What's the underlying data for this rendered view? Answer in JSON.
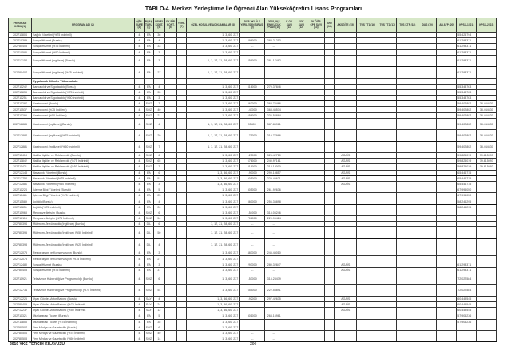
{
  "title": "TABLO-4. Merkezi Yerleştirme İle Öğrenci Alan Yükseköğretim Lisans Programları",
  "headers": [
    "PROGRAM KODU (1)",
    "PROGRAM ADI (2)",
    "ÖĞR. SÜRE (3)",
    "PUAN TÜRÜ (4)",
    "GENEL KONT. (5)",
    "OK.BİR. KONT. (6)",
    "YERL. (7)",
    "ÖZEL KOŞUL VE AÇIKLAMALAR (8)",
    "2018-YKS İLE YERLEŞEN SIRASI (9)",
    "2018-YKS EN KÜÇÜK PUAN (10)",
    "K.OK SAYI (11)",
    "SOK SAYI (12)",
    "EK ÖĞR. ÇPE SAYI (13)",
    "SRV (14)",
    "AKSGİTE (15)",
    "TUS TT1 (16)",
    "TUS TT2 (17)",
    "TUS KTP (18)",
    "DUS (19)",
    "AB AYP (20)",
    "KPSS-1 (21)",
    "KPSS-2 (22)"
  ],
  "rows": [
    {
      "cells": [
        "202711804",
        "Sağlık Yönetimi (%75 İndirimli)",
        "4",
        "EA",
        "36",
        "",
        "",
        "1, 3, 60, 237",
        "",
        "",
        "",
        "",
        "",
        "",
        "",
        "",
        "",
        "",
        "",
        "",
        "55.425794",
        ""
      ]
    },
    {
      "cells": [
        "202710389",
        "Sosyal Hizmet (Burslu)",
        "4",
        "EA",
        "4",
        "",
        "",
        "1, 3, 60, 237",
        "296000",
        "284.21213",
        "",
        "",
        "",
        "",
        "",
        "",
        "",
        "",
        "",
        "",
        "61.298371",
        ""
      ]
    },
    {
      "cells": [
        "202780405",
        "Sosyal Hizmet (%75 İndirimli)",
        "4",
        "EA",
        "33",
        "",
        "",
        "1, 3, 60, 237",
        "---",
        "---",
        "",
        "",
        "",
        "",
        "",
        "",
        "",
        "",
        "",
        "",
        "61.298371",
        ""
      ]
    },
    {
      "cells": [
        "202710586",
        "Sosyal Hizmet (%50 İndirimli)",
        "4",
        "EA",
        "3",
        "",
        "",
        "1, 3, 60, 237",
        "",
        "",
        "",
        "",
        "",
        "",
        "",
        "",
        "",
        "",
        "",
        "",
        "61.298371",
        ""
      ]
    },
    {
      "cells": [
        "202712152",
        "Sosyal Hizmet (İngilizce) (Burslu)",
        "4",
        "EA",
        "3",
        "",
        "",
        "1, 3, 17, 21, 28, 60, 237",
        "259000",
        "281.17482",
        "",
        "",
        "",
        "",
        "",
        "",
        "",
        "",
        "",
        "",
        "61.298371",
        ""
      ]
    },
    {
      "cells": [
        "202780407",
        "Sosyal Hizmet (İngilizce) (%75 İndirimli)",
        "4",
        "EA",
        "27",
        "",
        "",
        "1, 3, 17, 21, 28, 60, 237",
        "---",
        "---",
        "",
        "",
        "",
        "",
        "",
        "",
        "",
        "",
        "",
        "",
        "61.298371",
        ""
      ]
    },
    {
      "section": true,
      "cells": [
        "",
        "Uygulamalı Bilimler Yüksekokulu",
        "",
        "",
        "",
        "",
        "",
        "",
        "",
        "",
        "",
        "",
        "",
        "",
        "",
        "",
        "",
        "",
        "",
        "",
        "",
        ""
      ]
    },
    {
      "cells": [
        "202711242",
        "Bankacılık ve Sigortacılık (Burslu)",
        "4",
        "EA",
        "4",
        "",
        "",
        "1, 3, 60, 237",
        "316000",
        "270.37846",
        "",
        "",
        "",
        "",
        "",
        "",
        "",
        "",
        "",
        "",
        "55.343763",
        ""
      ]
    },
    {
      "cells": [
        "202711833",
        "Bankacılık ve Sigortacılık (%75 İndirimli)",
        "4",
        "EA",
        "33",
        "",
        "",
        "1, 3, 60, 237",
        "",
        "",
        "",
        "",
        "",
        "",
        "",
        "",
        "",
        "",
        "",
        "",
        "55.343763",
        ""
      ]
    },
    {
      "cells": [
        "202711251",
        "Bankacılık ve Sigortacılık (%50 İndirimli)",
        "4",
        "EA",
        "3",
        "",
        "",
        "1, 3, 60, 237",
        "",
        "",
        "",
        "",
        "",
        "",
        "",
        "",
        "",
        "",
        "",
        "",
        "55.343763",
        ""
      ]
    },
    {
      "cells": [
        "202711287",
        "Gastronomi (Burslu)",
        "4",
        "SÖZ",
        "7",
        "",
        "",
        "1, 3, 60, 237",
        "363000",
        "364.73466",
        "",
        "",
        "",
        "",
        "",
        "",
        "",
        "",
        "",
        "",
        "59.402802",
        "78.444630"
      ]
    },
    {
      "cells": [
        "202711537",
        "Gastronomi (%75 İndirimli)",
        "4",
        "SÖZ",
        "40",
        "",
        "",
        "1, 3, 60, 237",
        "147000",
        "368.45574",
        "",
        "",
        "",
        "",
        "",
        "",
        "",
        "",
        "",
        "",
        "59.402802",
        "78.444630"
      ]
    },
    {
      "cells": [
        "202711290",
        "Gastronomi (%50 İndirimli)",
        "4",
        "SÖZ",
        "21",
        "",
        "",
        "1, 3, 60, 237",
        "656000",
        "236.52884",
        "",
        "",
        "",
        "",
        "",
        "",
        "",
        "",
        "",
        "",
        "59.402802",
        "78.444630"
      ]
    },
    {
      "cells": [
        "202712885",
        "Gastronomi (İngilizce) (Burslu)",
        "4",
        "SÖZ",
        "4",
        "",
        "",
        "1, 3, 17, 21, 28, 60, 237",
        "95400",
        "387.85961",
        "",
        "",
        "",
        "",
        "",
        "",
        "",
        "",
        "",
        "",
        "59.402802",
        "78.444630"
      ]
    },
    {
      "cells": [
        "202712884",
        "Gastronomi (İngilizce) (%75 İndirimli)",
        "4",
        "SÖZ",
        "29",
        "",
        "",
        "1, 3, 17, 21, 28, 60, 237",
        "171000",
        "310.77986",
        "",
        "",
        "",
        "",
        "",
        "",
        "",
        "",
        "",
        "",
        "59.402802",
        "78.444630"
      ]
    },
    {
      "cells": [
        "202712881",
        "Gastronomi (İngilizce) (%50 İndirimli)",
        "4",
        "SÖZ",
        "7",
        "",
        "",
        "1, 3, 17, 21, 28, 60, 237",
        "",
        "",
        "",
        "",
        "",
        "",
        "",
        "",
        "",
        "",
        "",
        "",
        "59.402802",
        "78.444630"
      ]
    },
    {
      "cells": [
        "202711418",
        "Halkla İlişkiler ve Reklamcılık (Burslu)",
        "4",
        "SÖZ",
        "6",
        "",
        "",
        "1, 3, 60, 237",
        "125000",
        "325.42710",
        "",
        "",
        "",
        "",
        "AGAİS",
        "",
        "",
        "",
        "",
        "",
        "59.825019",
        "79.815093"
      ]
    },
    {
      "cells": [
        "202711842",
        "Halkla İlişkiler ve Reklamcılık (%75 İndirimli)",
        "4",
        "SÖZ",
        "65",
        "",
        "",
        "1, 3, 60, 237",
        "676000",
        "240.97161",
        "",
        "",
        "",
        "",
        "AGAİS",
        "",
        "",
        "",
        "",
        "",
        "59.825019",
        "79.815093"
      ]
    },
    {
      "cells": [
        "202711421",
        "Halkla İlişkiler ve Reklamcılık (%50 İndirimli)",
        "4",
        "SÖZ",
        "7",
        "",
        "",
        "1, 3, 60, 237",
        "819000",
        "214.13000",
        "",
        "",
        "",
        "",
        "AGAİS",
        "",
        "",
        "",
        "",
        "",
        "59.825019",
        "79.815093"
      ]
    },
    {
      "cells": [
        "202712143",
        "Havacılık Yönetimi (Burslu)",
        "4",
        "EA",
        "6",
        "",
        "",
        "1, 3, 46, 60, 237",
        "190000",
        "299.19857",
        "",
        "",
        "",
        "",
        "AGAİS",
        "",
        "",
        "",
        "",
        "",
        "65.446715",
        ""
      ]
    },
    {
      "cells": [
        "202712752",
        "Havacılık Yönetimi (%75 İndirimli)",
        "4",
        "EA",
        "51",
        "",
        "",
        "1, 3, 46, 60, 237",
        "505000",
        "229.45621",
        "",
        "",
        "",
        "",
        "AGAİS",
        "",
        "",
        "",
        "",
        "",
        "65.446715",
        ""
      ]
    },
    {
      "cells": [
        "202712581",
        "Havacılık Yönetimi (%50 İndirimli)",
        "4",
        "EA",
        "3",
        "",
        "",
        "1, 3, 46, 60, 237",
        "",
        "",
        "",
        "",
        "",
        "",
        "AGAİS",
        "",
        "",
        "",
        "",
        "",
        "65.446715",
        ""
      ]
    },
    {
      "cells": [
        "202711224",
        "İşletme Bilgi Yönetimi (Burslu)",
        "4",
        "EA",
        "5",
        "",
        "",
        "1, 3, 60, 237",
        "305000",
        "261.92636",
        "",
        "",
        "",
        "",
        "",
        "",
        "",
        "",
        "",
        "",
        "67.995050",
        ""
      ]
    },
    {
      "cells": [
        "202711481",
        "İşletme Bilgi Yönetimi (%75 İndirimli)",
        "4",
        "EA",
        "25",
        "",
        "",
        "1, 3, 60, 237",
        "",
        "",
        "",
        "",
        "",
        "",
        "",
        "",
        "",
        "",
        "",
        "",
        "67.995050",
        ""
      ]
    },
    {
      "cells": [
        "202711589",
        "Lojistik (Burslu)",
        "4",
        "EA",
        "4",
        "",
        "",
        "1, 3, 60, 237",
        "360000",
        "256.35898",
        "",
        "",
        "",
        "",
        "",
        "",
        "",
        "",
        "",
        "",
        "58.246295",
        ""
      ]
    },
    {
      "cells": [
        "202711851",
        "Lojistik (%75 İndirimli)",
        "4",
        "EA",
        "26",
        "",
        "",
        "1, 3, 60, 237",
        "",
        "",
        "",
        "",
        "",
        "",
        "",
        "",
        "",
        "",
        "",
        "",
        "58.246295",
        ""
      ]
    },
    {
      "cells": [
        "202711968",
        "Medya ve İletişim (Burslu)",
        "4",
        "SÖZ",
        "6",
        "",
        "",
        "1, 3, 60, 237",
        "154000",
        "315.05246",
        "",
        "",
        "",
        "",
        "",
        "",
        "",
        "",
        "",
        "",
        "",
        ""
      ]
    },
    {
      "cells": [
        "202712116",
        "Medya ve İletişim (%75 İndirimli)",
        "4",
        "SÖZ",
        "54",
        "",
        "",
        "1, 3, 60, 237",
        "706000",
        "229.99424",
        "",
        "",
        "",
        "",
        "",
        "",
        "",
        "",
        "",
        "",
        "",
        ""
      ]
    },
    {
      "cells": [
        "202780394",
        "Mütercim-Tercümanlık (İngilizce) (Burslu)",
        "4",
        "DİL",
        "6",
        "",
        "",
        "3, 17, 21, 28, 60, 237",
        "---",
        "---",
        "",
        "",
        "",
        "",
        "",
        "",
        "",
        "",
        "",
        "",
        "",
        ""
      ]
    },
    {
      "cells": [
        "202780395",
        "Mütercim-Tercümanlık (İngilizce) (%50 İndirimli)",
        "4",
        "DİL",
        "50",
        "",
        "",
        "3, 17, 21, 28, 60, 237",
        "---",
        "---",
        "",
        "",
        "",
        "",
        "",
        "",
        "",
        "",
        "",
        "",
        "",
        ""
      ]
    },
    {
      "cells": [
        "202780393",
        "Mütercim-Tercümanlık (İngilizce) (%25 İndirimli)",
        "4",
        "DİL",
        "4",
        "",
        "",
        "3, 17, 21, 28, 60, 237",
        "---",
        "---",
        "",
        "",
        "",
        "",
        "",
        "",
        "",
        "",
        "",
        "",
        "",
        ""
      ]
    },
    {
      "cells": [
        "202712075",
        "Restorasyon ve Konservasyon (Burslu)",
        "4",
        "EA",
        "3",
        "",
        "",
        "1, 3, 60, 237",
        "483000",
        "245.45010",
        "",
        "",
        "",
        "",
        "",
        "",
        "",
        "",
        "",
        "",
        "",
        ""
      ]
    },
    {
      "cells": [
        "202712078",
        "Restorasyon ve Konservasyon (%75 İndirimli)",
        "4",
        "EA",
        "27",
        "",
        "",
        "1, 3, 60, 237",
        "",
        "",
        "",
        "",
        "",
        "",
        "",
        "",
        "",
        "",
        "",
        "",
        "",
        ""
      ]
    },
    {
      "cells": [
        "202712480",
        "Sosyal Hizmet (Burslu)",
        "4",
        "EA",
        "3",
        "",
        "",
        "1, 3, 60, 237",
        "293000",
        "280.32847",
        "",
        "",
        "",
        "",
        "AGAİS",
        "",
        "",
        "",
        "",
        "",
        "61.298371",
        ""
      ]
    },
    {
      "cells": [
        "202780408",
        "Sosyal Hizmet (%75 İndirimli)",
        "4",
        "EA",
        "37",
        "",
        "",
        "1, 3, 60, 237",
        "---",
        "---",
        "",
        "",
        "",
        "",
        "AGAİS",
        "",
        "",
        "",
        "",
        "",
        "61.298371",
        ""
      ]
    },
    {
      "cells": [
        "202711921",
        "Televizyon Haberciliği ve Programcılığı (Burslu)",
        "4",
        "SÖZ",
        "6",
        "",
        "",
        "1, 3, 60, 237",
        "153000",
        "315.28479",
        "",
        "",
        "",
        "",
        "",
        "",
        "",
        "",
        "",
        "",
        "72.022584",
        ""
      ]
    },
    {
      "cells": [
        "202712734",
        "Televizyon Haberciliği ve Programcılığı (%75 İndirimli)",
        "4",
        "SÖZ",
        "54",
        "",
        "",
        "1, 3, 60, 237",
        "655000",
        "222.55891",
        "",
        "",
        "",
        "",
        "",
        "",
        "",
        "",
        "",
        "",
        "72.022584",
        ""
      ]
    },
    {
      "cells": [
        "202712226",
        "Uçak Gövde-Motor Bakımı (Burslu)",
        "4",
        "SAY",
        "4",
        "",
        "",
        "1, 3, 46, 60, 237",
        "192000",
        "297.42635",
        "",
        "",
        "",
        "",
        "AGAİS",
        "",
        "",
        "",
        "",
        "",
        "60.449545",
        ""
      ]
    },
    {
      "cells": [
        "202780409",
        "Uçak Gövde-Motor Bakımı (%75 İndirimli)",
        "4",
        "SAY",
        "24",
        "",
        "",
        "1, 3, 46, 60, 237",
        "---",
        "---",
        "",
        "",
        "",
        "",
        "AGAİS",
        "",
        "",
        "",
        "",
        "",
        "60.449545",
        ""
      ]
    },
    {
      "cells": [
        "202712237",
        "Uçak Gövde-Motor Bakımı (%50 İndirimli)",
        "4",
        "SAY",
        "12",
        "",
        "",
        "1, 3, 46, 60, 237",
        "",
        "",
        "",
        "",
        "",
        "",
        "AGAİS",
        "",
        "",
        "",
        "",
        "",
        "60.449545",
        ""
      ]
    },
    {
      "cells": [
        "202711321",
        "Uluslararası Ticaret (Burslu)",
        "4",
        "EA",
        "5",
        "",
        "",
        "1, 3, 60, 237",
        "301000",
        "264.16981",
        "",
        "",
        "",
        "",
        "",
        "",
        "",
        "",
        "",
        "",
        "57.905236",
        ""
      ]
    },
    {
      "cells": [
        "202711855",
        "Uluslararası Ticaret (%75 İndirimli)",
        "4",
        "EA",
        "35",
        "",
        "",
        "1, 3, 60, 237",
        "",
        "",
        "",
        "",
        "",
        "",
        "",
        "",
        "",
        "",
        "",
        "",
        "57.905236",
        ""
      ]
    },
    {
      "cells": [
        "202780507",
        "Yeni Medya ve Gazetecilik (Burslu)",
        "4",
        "SÖZ",
        "6",
        "",
        "",
        "1, 3, 60, 237",
        "",
        "",
        "",
        "",
        "",
        "",
        "",
        "",
        "",
        "",
        "",
        "",
        "",
        ""
      ]
    },
    {
      "cells": [
        "202780506",
        "Yeni Medya ve Gazetecilik (%75 İndirimli)",
        "4",
        "SÖZ",
        "40",
        "",
        "",
        "1, 3, 60, 237",
        "---",
        "---",
        "",
        "",
        "",
        "",
        "",
        "",
        "",
        "",
        "",
        "",
        "",
        ""
      ]
    },
    {
      "cells": [
        "202780508",
        "Yeni Medya ve Gazetecilik (%50 İndirimli)",
        "4",
        "SÖZ",
        "14",
        "",
        "",
        "1, 3, 60, 237",
        "---",
        "---",
        "",
        "",
        "",
        "",
        "",
        "",
        "",
        "",
        "",
        "",
        "",
        ""
      ]
    }
  ],
  "footer": {
    "left": "2019 YKS TERCİH KILAVUZU",
    "page": "290"
  }
}
